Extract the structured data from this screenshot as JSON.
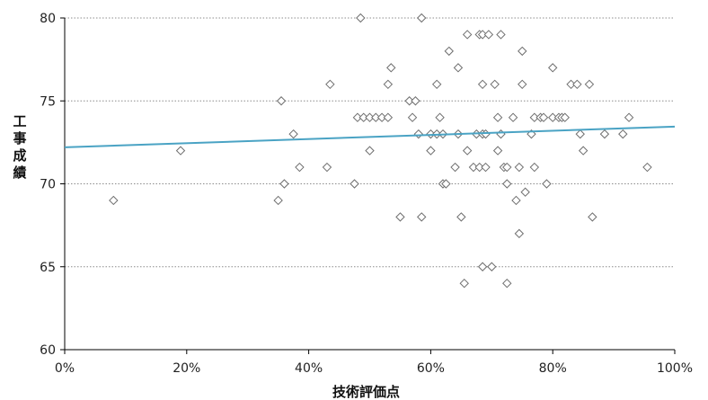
{
  "chart_data": {
    "type": "scatter",
    "title": "",
    "xlabel": "技術評価点",
    "ylabel": "工事成績",
    "xlim": [
      0,
      1
    ],
    "ylim": [
      60,
      80
    ],
    "x_ticks": [
      "0%",
      "20%",
      "40%",
      "60%",
      "80%",
      "100%"
    ],
    "y_ticks": [
      "60",
      "65",
      "70",
      "75",
      "80"
    ],
    "grid": "horizontal dotted",
    "legend": "none",
    "colors": {
      "marker": "#6e6e6e",
      "trendline": "#4aa3c4"
    },
    "trendline": {
      "type": "linear",
      "start": [
        0,
        72.2
      ],
      "end": [
        1,
        73.45
      ]
    },
    "series": [
      {
        "points": [
          [
            0.08,
            69
          ],
          [
            0.19,
            72
          ],
          [
            0.35,
            69
          ],
          [
            0.355,
            75
          ],
          [
            0.36,
            70
          ],
          [
            0.375,
            73
          ],
          [
            0.385,
            71
          ],
          [
            0.43,
            71
          ],
          [
            0.435,
            76
          ],
          [
            0.475,
            70
          ],
          [
            0.48,
            74
          ],
          [
            0.485,
            80
          ],
          [
            0.49,
            74
          ],
          [
            0.5,
            72
          ],
          [
            0.5,
            74
          ],
          [
            0.51,
            74
          ],
          [
            0.52,
            74
          ],
          [
            0.53,
            76
          ],
          [
            0.53,
            74
          ],
          [
            0.535,
            77
          ],
          [
            0.55,
            68
          ],
          [
            0.565,
            75
          ],
          [
            0.57,
            74
          ],
          [
            0.575,
            75
          ],
          [
            0.58,
            73
          ],
          [
            0.585,
            68
          ],
          [
            0.585,
            80
          ],
          [
            0.6,
            72
          ],
          [
            0.6,
            73
          ],
          [
            0.61,
            73
          ],
          [
            0.61,
            76
          ],
          [
            0.615,
            74
          ],
          [
            0.62,
            70
          ],
          [
            0.62,
            73
          ],
          [
            0.625,
            70
          ],
          [
            0.63,
            78
          ],
          [
            0.64,
            71
          ],
          [
            0.645,
            73
          ],
          [
            0.645,
            77
          ],
          [
            0.65,
            68
          ],
          [
            0.655,
            64
          ],
          [
            0.66,
            72
          ],
          [
            0.66,
            79
          ],
          [
            0.67,
            71
          ],
          [
            0.675,
            73
          ],
          [
            0.68,
            79
          ],
          [
            0.68,
            71
          ],
          [
            0.685,
            73
          ],
          [
            0.685,
            76
          ],
          [
            0.685,
            65
          ],
          [
            0.685,
            79
          ],
          [
            0.69,
            71
          ],
          [
            0.69,
            73
          ],
          [
            0.695,
            79
          ],
          [
            0.7,
            65
          ],
          [
            0.705,
            76
          ],
          [
            0.71,
            74
          ],
          [
            0.71,
            72
          ],
          [
            0.715,
            73
          ],
          [
            0.715,
            79
          ],
          [
            0.72,
            71
          ],
          [
            0.725,
            71
          ],
          [
            0.725,
            70
          ],
          [
            0.725,
            64
          ],
          [
            0.735,
            74
          ],
          [
            0.74,
            69
          ],
          [
            0.745,
            71
          ],
          [
            0.745,
            67
          ],
          [
            0.75,
            78
          ],
          [
            0.75,
            76
          ],
          [
            0.755,
            69.5
          ],
          [
            0.765,
            73
          ],
          [
            0.77,
            74
          ],
          [
            0.77,
            71
          ],
          [
            0.78,
            74
          ],
          [
            0.785,
            74
          ],
          [
            0.79,
            70
          ],
          [
            0.8,
            77
          ],
          [
            0.8,
            74
          ],
          [
            0.81,
            74
          ],
          [
            0.815,
            74
          ],
          [
            0.82,
            74
          ],
          [
            0.83,
            76
          ],
          [
            0.84,
            76
          ],
          [
            0.845,
            73
          ],
          [
            0.85,
            72
          ],
          [
            0.86,
            76
          ],
          [
            0.865,
            68
          ],
          [
            0.885,
            73
          ],
          [
            0.915,
            73
          ],
          [
            0.925,
            74
          ],
          [
            0.955,
            71
          ]
        ]
      }
    ]
  }
}
